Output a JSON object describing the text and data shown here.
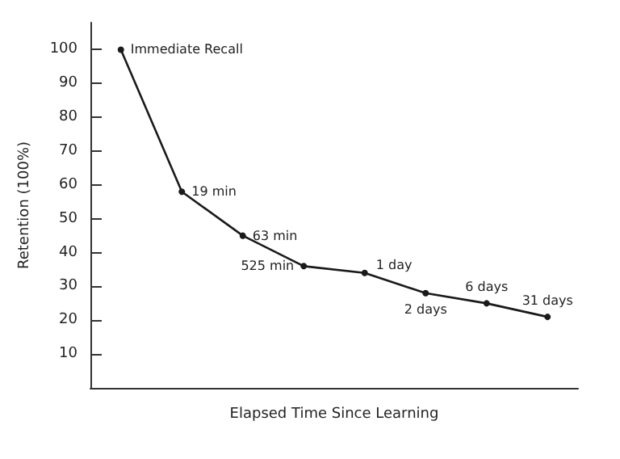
{
  "chart_data": {
    "type": "line",
    "xlabel": "Elapsed Time Since Learning",
    "ylabel": "Retention (100%)",
    "categories": [
      null,
      null,
      null,
      null,
      null,
      null,
      null,
      null
    ],
    "series": [
      {
        "color": "#1a1a1a",
        "values": [
          100,
          58,
          45,
          36,
          34,
          28,
          25,
          21
        ]
      }
    ],
    "annotations": [
      "Immediate Recall",
      "19 min",
      "63 min",
      "525 min",
      "1 day",
      "2 days",
      "6 days",
      "31 days"
    ],
    "ylim": [
      0,
      108
    ],
    "yticks": [
      10,
      20,
      30,
      40,
      50,
      60,
      70,
      80,
      90,
      100
    ],
    "tick_labels": "y",
    "grid": false,
    "marker": "circle",
    "line_style": "solid"
  }
}
